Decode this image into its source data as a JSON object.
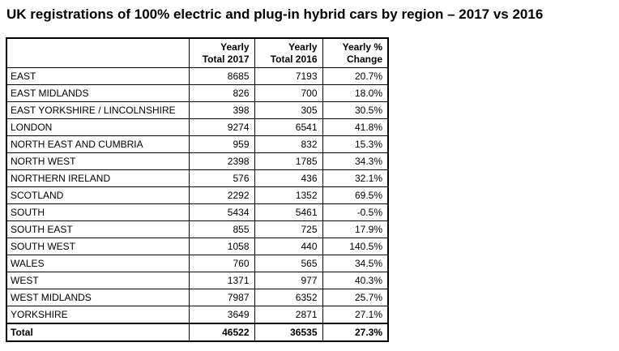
{
  "title": "UK registrations of 100% electric and plug-in hybrid cars by region – 2017 vs 2016",
  "chart_data": {
    "type": "table",
    "columns": [
      "",
      "Yearly\nTotal 2017",
      "Yearly\nTotal 2016",
      "Yearly %\nChange"
    ],
    "rows": [
      {
        "region": "EAST",
        "y2017": "8685",
        "y2016": "7193",
        "change": "20.7%"
      },
      {
        "region": "EAST MIDLANDS",
        "y2017": "826",
        "y2016": "700",
        "change": "18.0%"
      },
      {
        "region": "EAST YORKSHIRE / LINCOLNSHIRE",
        "y2017": "398",
        "y2016": "305",
        "change": "30.5%"
      },
      {
        "region": "LONDON",
        "y2017": "9274",
        "y2016": "6541",
        "change": "41.8%"
      },
      {
        "region": "NORTH EAST AND CUMBRIA",
        "y2017": "959",
        "y2016": "832",
        "change": "15.3%"
      },
      {
        "region": "NORTH WEST",
        "y2017": "2398",
        "y2016": "1785",
        "change": "34.3%"
      },
      {
        "region": "NORTHERN IRELAND",
        "y2017": "576",
        "y2016": "436",
        "change": "32.1%"
      },
      {
        "region": "SCOTLAND",
        "y2017": "2292",
        "y2016": "1352",
        "change": "69.5%"
      },
      {
        "region": "SOUTH",
        "y2017": "5434",
        "y2016": "5461",
        "change": "-0.5%"
      },
      {
        "region": "SOUTH EAST",
        "y2017": "855",
        "y2016": "725",
        "change": "17.9%"
      },
      {
        "region": "SOUTH WEST",
        "y2017": "1058",
        "y2016": "440",
        "change": "140.5%"
      },
      {
        "region": "WALES",
        "y2017": "760",
        "y2016": "565",
        "change": "34.5%"
      },
      {
        "region": "WEST",
        "y2017": "1371",
        "y2016": "977",
        "change": "40.3%"
      },
      {
        "region": "WEST MIDLANDS",
        "y2017": "7987",
        "y2016": "6352",
        "change": "25.7%"
      },
      {
        "region": "YORKSHIRE",
        "y2017": "3649",
        "y2016": "2871",
        "change": "27.1%"
      }
    ],
    "total": {
      "region": "Total",
      "y2017": "46522",
      "y2016": "36535",
      "change": "27.3%"
    },
    "colors": {
      "text": "#000000",
      "border": "#000000",
      "background": "#ffffff"
    }
  }
}
